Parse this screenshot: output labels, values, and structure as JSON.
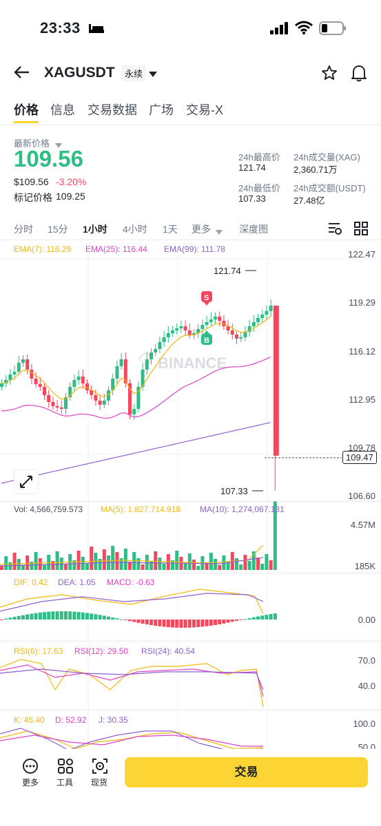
{
  "status": {
    "time": "23:33"
  },
  "header": {
    "symbol": "XAGUSDT",
    "badge": "永续"
  },
  "tabs": [
    {
      "label": "价格",
      "active": true
    },
    {
      "label": "信息"
    },
    {
      "label": "交易数据"
    },
    {
      "label": "广场"
    },
    {
      "label": "交易-X"
    }
  ],
  "price": {
    "latest_label": "最新价格",
    "latest": "109.56",
    "usd": "$109.56",
    "change": "-3.20%",
    "mark_label": "标记价格",
    "mark": "109.25"
  },
  "stats": {
    "high_label": "24h最高价",
    "high": "121.74",
    "vol_label": "24h成交量(XAG)",
    "vol": "2,360.71万",
    "low_label": "24h最低价",
    "low": "107.33",
    "turnover_label": "24h成交额(USDT)",
    "turnover": "27.48亿"
  },
  "intervals": [
    {
      "label": "分时"
    },
    {
      "label": "15分"
    },
    {
      "label": "1小时",
      "active": true
    },
    {
      "label": "4小时"
    },
    {
      "label": "1天"
    },
    {
      "label": "更多"
    },
    {
      "label": "深度图"
    }
  ],
  "ema": {
    "e7": "EMA(7): 116.29",
    "e25": "EMA(25): 116.44",
    "e99": "EMA(99): 111.78"
  },
  "price_axis": [
    "122.47",
    "119.29",
    "116.12",
    "112.95",
    "109.78",
    "106.60"
  ],
  "chart_marks": {
    "high": "121.74",
    "low": "107.33",
    "current": "109.47",
    "sell": "S",
    "buy": "B",
    "watermark": "BINANCE"
  },
  "volume": {
    "vol": "Vol: 4,566,759.573",
    "ma5": "MA(5): 1,827,714.918",
    "ma10": "MA(10): 1,274,067.131",
    "axis_top": "4.57M",
    "axis_bottom": "185K"
  },
  "macd": {
    "dif": "DIF: 0.42",
    "dea": "DEA: 1.05",
    "macd": "MACD: -0.63",
    "axis": "0.00"
  },
  "rsi": {
    "r6": "RSI(6): 17.63",
    "r12": "RSI(12): 29.50",
    "r24": "RSI(24): 40.54",
    "axis_top": "70.0",
    "axis_bottom": "40.0"
  },
  "kdj": {
    "k": "K: 45.40",
    "d": "D: 52.92",
    "j": "J: 30.35",
    "axis_top": "100.0",
    "axis_bottom": "50.0"
  },
  "bottom_bar": {
    "more": "更多",
    "tools": "工具",
    "spot": "现货",
    "trade": "交易"
  },
  "colors": {
    "up": "#2ebd85",
    "down": "#f6465d",
    "ema7": "#f0b90b",
    "ema25": "#e040c8",
    "ema99": "#8e5fd0",
    "accent": "#fcd535"
  }
}
